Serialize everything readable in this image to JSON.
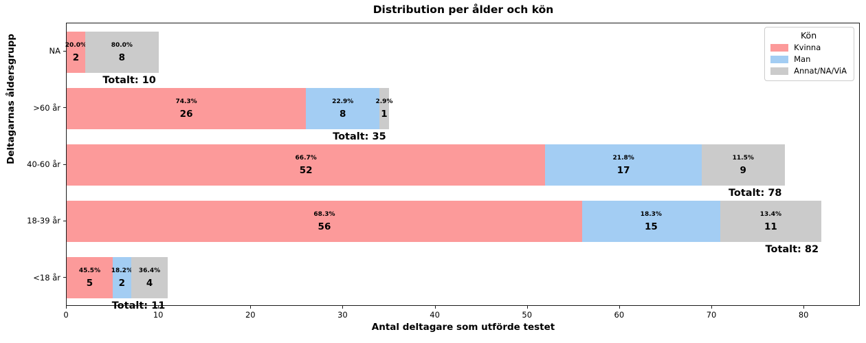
{
  "chart_data": {
    "type": "bar",
    "orientation": "horizontal-stacked",
    "title": "Distribution per ålder och kön",
    "xlabel": "Antal deltagare som utförde testet",
    "ylabel": "Deltagarnas åldersgrupp",
    "categories": [
      "NA",
      ">60 år",
      "40-60 år",
      "18-39 år",
      "<18 år"
    ],
    "series": [
      {
        "name": "Kvinna",
        "color": "#fc9a9a",
        "values": [
          2,
          26,
          52,
          56,
          5
        ],
        "pcts": [
          "20.0%",
          "74.3%",
          "66.7%",
          "68.3%",
          "45.5%"
        ]
      },
      {
        "name": "Man",
        "color": "#a3cdf3",
        "values": [
          0,
          8,
          17,
          15,
          2
        ],
        "pcts": [
          "",
          "22.9%",
          "21.8%",
          "18.3%",
          "18.2%"
        ]
      },
      {
        "name": "Annat/NA/ViA",
        "color": "#cbcbcb",
        "values": [
          8,
          1,
          9,
          11,
          4
        ],
        "pcts": [
          "80.0%",
          "2.9%",
          "11.5%",
          "13.4%",
          "36.4%"
        ]
      }
    ],
    "totals": [
      10,
      35,
      78,
      82,
      11
    ],
    "total_labels": [
      "Totalt: 10",
      "Totalt: 35",
      "Totalt: 78",
      "Totalt: 82",
      "Totalt: 11"
    ],
    "xticks": [
      "0",
      "10",
      "20",
      "30",
      "40",
      "50",
      "60",
      "70",
      "80"
    ],
    "xtick_values": [
      0,
      10,
      20,
      30,
      40,
      50,
      60,
      70,
      80
    ],
    "xlim": [
      0,
      86.1
    ],
    "grid": false,
    "legend": {
      "title": "Kön",
      "position": "upper-right-inside",
      "entries": [
        "Kvinna",
        "Man",
        "Annat/NA/ViA"
      ]
    }
  }
}
